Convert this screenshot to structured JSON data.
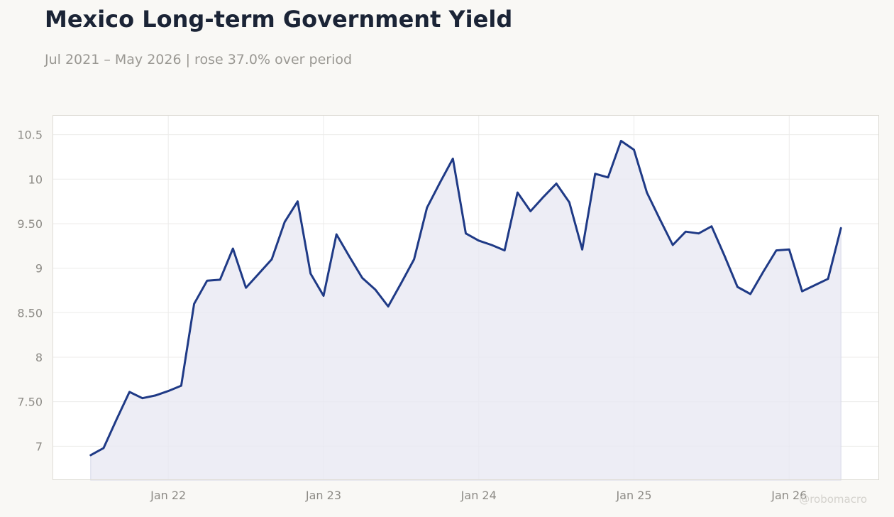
{
  "title": "Mexico Long-term Government Yield",
  "subtitle": "Jul 2021 – May 2026 | rose 37.0% over period",
  "watermark": "@robomacro",
  "chart_data": {
    "type": "area",
    "title": "Mexico Long-term Government Yield",
    "subtitle": "Jul 2021 – May 2026 | rose 37.0% over period",
    "xlabel": "",
    "ylabel": "",
    "x": [
      "2021-07",
      "2021-08",
      "2021-09",
      "2021-10",
      "2021-11",
      "2021-12",
      "2022-01",
      "2022-02",
      "2022-03",
      "2022-04",
      "2022-05",
      "2022-06",
      "2022-07",
      "2022-08",
      "2022-09",
      "2022-10",
      "2022-11",
      "2022-12",
      "2023-01",
      "2023-02",
      "2023-03",
      "2023-04",
      "2023-05",
      "2023-06",
      "2023-07",
      "2023-08",
      "2023-09",
      "2023-10",
      "2023-11",
      "2023-12",
      "2024-01",
      "2024-02",
      "2024-03",
      "2024-04",
      "2024-05",
      "2024-06",
      "2024-07",
      "2024-08",
      "2024-09",
      "2024-10",
      "2024-11",
      "2024-12",
      "2025-01",
      "2025-02",
      "2025-03",
      "2025-04",
      "2025-05",
      "2025-06",
      "2025-07",
      "2025-08",
      "2025-09",
      "2025-10",
      "2025-11",
      "2025-12",
      "2026-01",
      "2026-02",
      "2026-03",
      "2026-04",
      "2026-05"
    ],
    "series": [
      {
        "values": [
          6.9,
          6.98,
          7.3,
          7.61,
          7.54,
          7.57,
          7.62,
          7.68,
          8.6,
          8.86,
          8.87,
          9.22,
          8.78,
          8.94,
          9.1,
          9.52,
          9.75,
          8.94,
          8.69,
          9.38,
          9.13,
          8.89,
          8.76,
          8.57,
          8.83,
          9.1,
          9.68,
          9.96,
          10.23,
          9.39,
          9.31,
          9.26,
          9.2,
          9.85,
          9.64,
          9.8,
          9.95,
          9.74,
          9.21,
          10.06,
          10.02,
          10.43,
          10.33,
          9.85,
          9.55,
          9.26,
          9.41,
          9.39,
          9.47,
          9.14,
          8.79,
          8.71,
          8.96,
          9.2,
          9.21,
          8.74,
          8.81,
          8.88,
          9.45
        ]
      }
    ],
    "x_ticks": [
      "Jan 22",
      "Jan 23",
      "Jan 24",
      "Jan 25",
      "Jan 26"
    ],
    "y_ticks": [
      "7",
      "7.50",
      "8",
      "8.50",
      "9",
      "9.50",
      "10",
      "10.5"
    ],
    "ylim": [
      6.62,
      10.72
    ],
    "grid": true,
    "colors": {
      "line": "#1f3a86",
      "fill": "#e8e9f2",
      "grid": "#ecebea",
      "frame": "#dedcd6",
      "plot_bg": "#ffffff"
    }
  }
}
